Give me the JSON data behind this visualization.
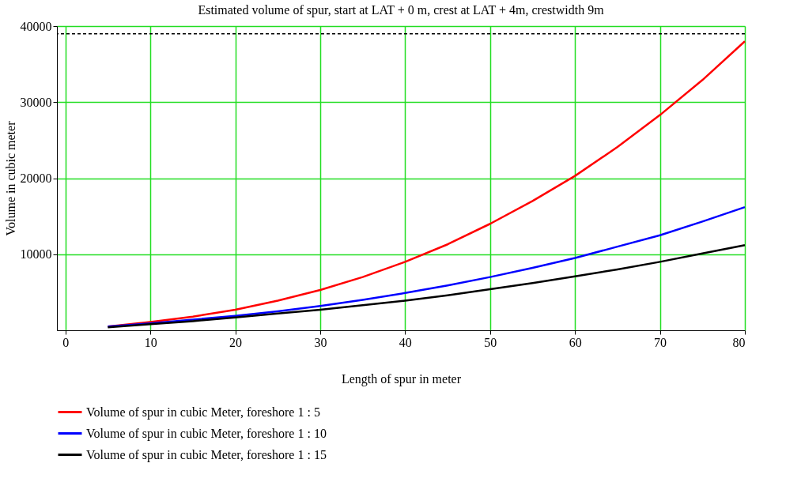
{
  "chart_data": {
    "type": "line",
    "title": "Estimated volume of spur, start at LAT + 0 m, crest at LAT + 4m, crestwidth 9m",
    "xlabel": "Length of spur in meter",
    "ylabel": "Volume in cubic meter",
    "x": [
      5,
      10,
      15,
      20,
      25,
      30,
      35,
      40,
      45,
      50,
      55,
      60,
      65,
      70,
      75,
      80
    ],
    "series": [
      {
        "name": "Volume of spur in cubic Meter, foreshore 1 : 5",
        "color": "#ff0000",
        "values": [
          500,
          1100,
          1800,
          2700,
          3900,
          5300,
          7000,
          9000,
          11300,
          14000,
          17000,
          20300,
          24100,
          28300,
          32900,
          38000
        ]
      },
      {
        "name": "Volume of spur in cubic Meter, foreshore 1 : 10",
        "color": "#0000ff",
        "values": [
          500,
          900,
          1400,
          1900,
          2500,
          3200,
          4000,
          4900,
          5900,
          7000,
          8200,
          9500,
          11000,
          12500,
          14300,
          16200
        ]
      },
      {
        "name": "Volume of spur in cubic Meter, foreshore 1 : 15",
        "color": "#000000",
        "values": [
          400,
          800,
          1200,
          1700,
          2200,
          2700,
          3300,
          3900,
          4600,
          5400,
          6200,
          7100,
          8000,
          9000,
          10100,
          11200
        ]
      }
    ],
    "xlim": [
      -1,
      80
    ],
    "xticks": [
      0,
      10,
      20,
      30,
      40,
      50,
      60,
      70,
      80
    ],
    "ylim": [
      0,
      40000
    ],
    "yticks": [
      10000,
      20000,
      30000,
      40000
    ],
    "ref_lines": [
      {
        "axis": "y",
        "value": 39000,
        "color": "#000000",
        "line_style": "dashed"
      }
    ],
    "grid": true,
    "legend": "bottom",
    "line_style": "solid",
    "marker": "none"
  }
}
